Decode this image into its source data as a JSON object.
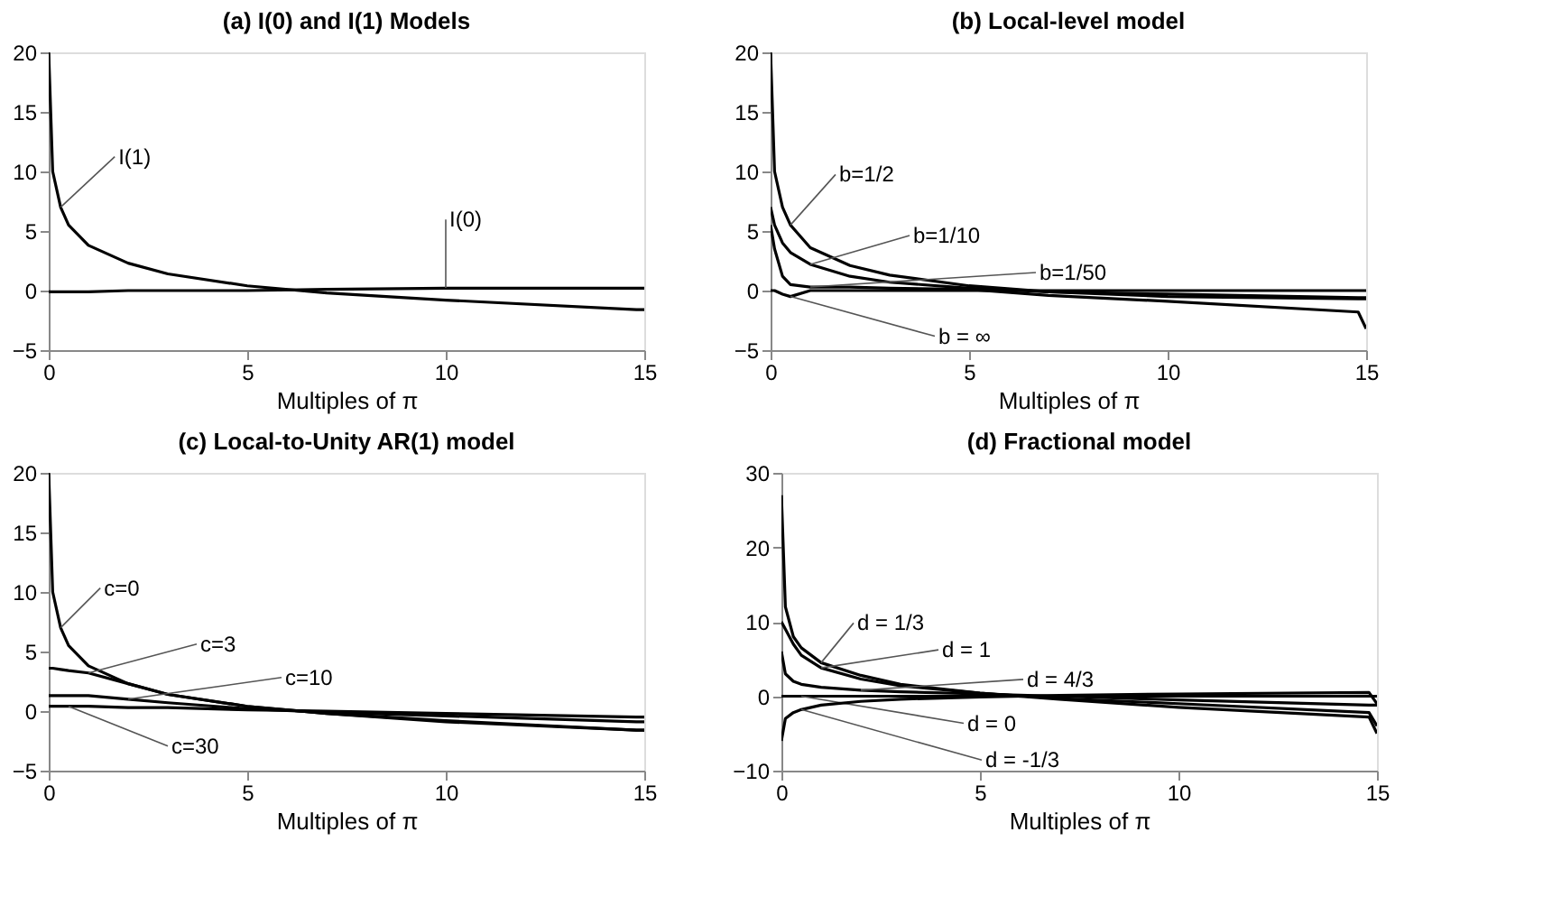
{
  "chart_data": [
    {
      "type": "line",
      "title": "(a) I(0) and I(1) Models",
      "xlabel": "Multiples of π",
      "x": [
        0,
        0.1,
        0.3,
        0.5,
        1,
        2,
        3,
        5,
        7,
        10,
        14.8,
        15
      ],
      "xlim": [
        0,
        15
      ],
      "xticks": [
        0,
        5,
        10,
        15
      ],
      "ylim": [
        -5,
        20
      ],
      "yticks": [
        -5,
        0,
        5,
        10,
        15,
        20
      ],
      "grid": false,
      "legend": false,
      "marker": "none",
      "line_style": "solid",
      "series": [
        {
          "name": "I(1)",
          "color": "#000000",
          "values": [
            20,
            10,
            7,
            5.5,
            3.8,
            2.3,
            1.4,
            0.4,
            -0.2,
            -0.8,
            -1.6,
            -1.6
          ]
        },
        {
          "name": "I(0)",
          "color": "#000000",
          "values": [
            -0.1,
            -0.1,
            -0.1,
            -0.1,
            -0.1,
            0,
            0,
            0,
            0.1,
            0.2,
            0.2,
            0.2
          ]
        }
      ]
    },
    {
      "type": "line",
      "title": "(b) Local-level model",
      "xlabel": "Multiples of π",
      "x": [
        0,
        0.1,
        0.3,
        0.5,
        1,
        2,
        3,
        5,
        7,
        10,
        14.8,
        15
      ],
      "xlim": [
        0,
        15
      ],
      "xticks": [
        0,
        5,
        10,
        15
      ],
      "ylim": [
        -5,
        20
      ],
      "yticks": [
        -5,
        0,
        5,
        10,
        15,
        20
      ],
      "grid": false,
      "legend": false,
      "marker": "none",
      "line_style": "solid",
      "series": [
        {
          "name": "b=1/2",
          "color": "#000000",
          "values": [
            20,
            10,
            7,
            5.5,
            3.6,
            2.1,
            1.3,
            0.4,
            -0.1,
            -0.5,
            -0.7,
            -0.7
          ]
        },
        {
          "name": "b=1/10",
          "color": "#000000",
          "values": [
            7,
            5.5,
            4,
            3.2,
            2.2,
            1.2,
            0.7,
            0.2,
            -0.1,
            -0.3,
            -0.6,
            -0.6
          ]
        },
        {
          "name": "b=1/50",
          "color": "#000000",
          "values": [
            5.5,
            3.5,
            1.2,
            0.5,
            0.3,
            0.3,
            0.2,
            0.1,
            -0.4,
            -0.9,
            -1.8,
            -3.2
          ]
        },
        {
          "name": "b = ∞",
          "color": "#000000",
          "values": [
            0,
            0,
            -0.3,
            -0.5,
            0,
            0,
            0,
            0,
            0,
            0,
            0,
            0
          ]
        }
      ]
    },
    {
      "type": "line",
      "title": "(c) Local-to-Unity AR(1) model",
      "xlabel": "Multiples of π",
      "x": [
        0,
        0.1,
        0.3,
        0.5,
        1,
        2,
        3,
        5,
        7,
        10,
        14.8,
        15
      ],
      "xlim": [
        0,
        15
      ],
      "xticks": [
        0,
        5,
        10,
        15
      ],
      "ylim": [
        -5,
        20
      ],
      "yticks": [
        -5,
        0,
        5,
        10,
        15,
        20
      ],
      "grid": false,
      "legend": false,
      "marker": "none",
      "line_style": "solid",
      "series": [
        {
          "name": "c=0",
          "color": "#000000",
          "values": [
            20,
            10,
            7,
            5.5,
            3.8,
            2.3,
            1.4,
            0.4,
            -0.2,
            -0.8,
            -1.6,
            -1.6
          ]
        },
        {
          "name": "c=3",
          "color": "#000000",
          "values": [
            3.6,
            3.6,
            3.5,
            3.4,
            3.2,
            2.3,
            1.4,
            0.4,
            -0.2,
            -0.9,
            -1.6,
            -1.6
          ]
        },
        {
          "name": "c=10",
          "color": "#000000",
          "values": [
            1.3,
            1.3,
            1.3,
            1.3,
            1.3,
            1.0,
            0.7,
            0.2,
            -0.1,
            -0.4,
            -0.9,
            -0.9
          ]
        },
        {
          "name": "c=30",
          "color": "#000000",
          "values": [
            0.4,
            0.4,
            0.4,
            0.4,
            0.4,
            0.3,
            0.3,
            0.1,
            0,
            -0.2,
            -0.5,
            -0.5
          ]
        }
      ]
    },
    {
      "type": "line",
      "title": "(d) Fractional model",
      "xlabel": "Multiples of π",
      "x": [
        0,
        0.1,
        0.3,
        0.5,
        1,
        2,
        3,
        5,
        7,
        10,
        14.8,
        15
      ],
      "xlim": [
        0,
        15
      ],
      "xticks": [
        0,
        5,
        10,
        15
      ],
      "ylim": [
        -10,
        30
      ],
      "yticks": [
        -10,
        0,
        10,
        20,
        30
      ],
      "grid": false,
      "legend": false,
      "marker": "none",
      "line_style": "solid",
      "series": [
        {
          "name": "d = 1/3",
          "color": "#000000",
          "values": [
            27,
            12,
            8,
            6.5,
            4.5,
            2.8,
            1.6,
            0.4,
            -0.4,
            -1.5,
            -2.8,
            -5
          ]
        },
        {
          "name": "d = 1",
          "color": "#000000",
          "values": [
            10,
            9,
            7,
            5.5,
            3.8,
            2.3,
            1.4,
            0.4,
            -0.3,
            -1,
            -2.2,
            -4
          ]
        },
        {
          "name": "d = 4/3",
          "color": "#000000",
          "values": [
            6,
            3,
            2,
            1.6,
            1.2,
            0.8,
            0.6,
            0.3,
            0,
            -0.5,
            -1.2,
            -1.2
          ]
        },
        {
          "name": "d = 0",
          "color": "#000000",
          "values": [
            0,
            0,
            0,
            0,
            0,
            0,
            0,
            0,
            0,
            0,
            0,
            0
          ]
        },
        {
          "name": "d = -1/3",
          "color": "#000000",
          "values": [
            -6,
            -3,
            -2.2,
            -1.8,
            -1.2,
            -0.7,
            -0.4,
            -0.1,
            0.1,
            0.3,
            0.5,
            -1
          ]
        }
      ]
    }
  ]
}
